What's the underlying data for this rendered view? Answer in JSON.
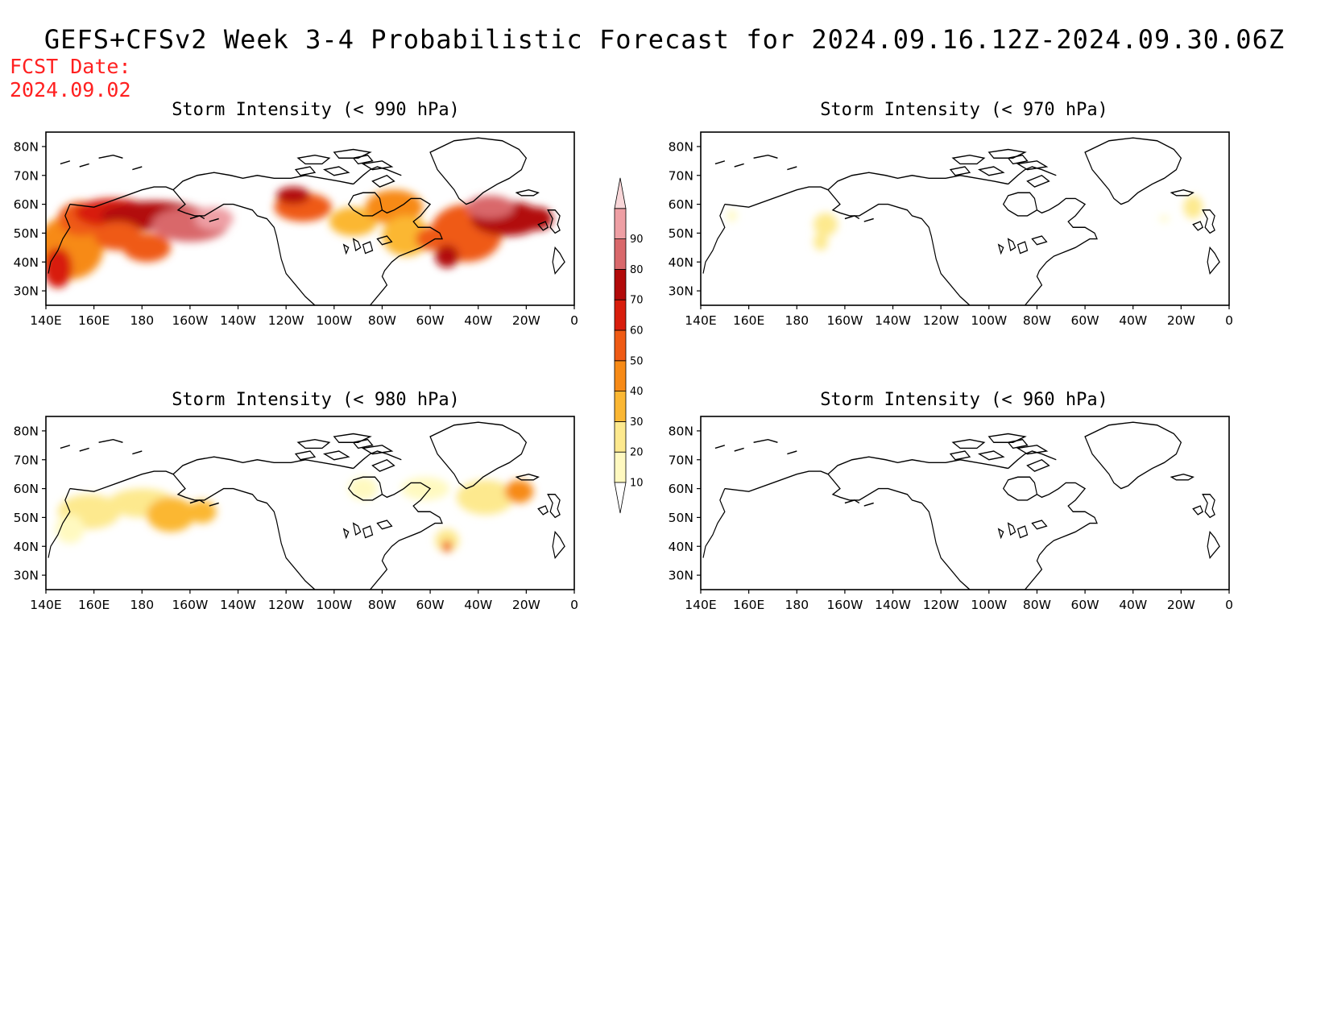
{
  "title": "GEFS+CFSv2 Week 3-4 Probabilistic Forecast for 2024.09.16.12Z-2024.09.30.06Z",
  "fcst_label": "FCST Date:",
  "fcst_date": "2024.09.02",
  "colors": [
    "#fff9c0",
    "#fde98e",
    "#fbb733",
    "#f78a16",
    "#ef5a14",
    "#d81d0c",
    "#b20a0a",
    "#d9686b",
    "#ee9fa4",
    "#f8d6d8"
  ],
  "colorbar": {
    "levels": [
      "10",
      "20",
      "30",
      "40",
      "50",
      "60",
      "70",
      "80",
      "90"
    ]
  },
  "lat_labels": [
    "80N",
    "70N",
    "60N",
    "50N",
    "40N",
    "30N"
  ],
  "lon_labels": [
    "140E",
    "160E",
    "180",
    "160W",
    "140W",
    "120W",
    "100W",
    "80W",
    "60W",
    "40W",
    "20W",
    "0"
  ],
  "panels": [
    {
      "title": "Storm Intensity (< 990 hPa)",
      "threshold_hpa": 990,
      "blobs": [
        {
          "lon": 150,
          "lat": 45,
          "rx": 14,
          "ry": 11,
          "v": 3
        },
        {
          "lon": 155,
          "lat": 55,
          "rx": 10,
          "ry": 6,
          "v": 4
        },
        {
          "lon": 168,
          "lat": 57,
          "rx": 16,
          "ry": 5,
          "v": 5
        },
        {
          "lon": 185,
          "lat": 56,
          "rx": 22,
          "ry": 5,
          "v": 6
        },
        {
          "lon": 170,
          "lat": 49,
          "rx": 10,
          "ry": 5,
          "v": 4
        },
        {
          "lon": 200,
          "lat": 53,
          "rx": 16,
          "ry": 6,
          "v": 7
        },
        {
          "lon": 210,
          "lat": 55,
          "rx": 8,
          "ry": 4,
          "v": 8
        },
        {
          "lon": 182,
          "lat": 45,
          "rx": 10,
          "ry": 5,
          "v": 4
        },
        {
          "lon": 145,
          "lat": 38,
          "rx": 6,
          "ry": 7,
          "v": 5
        },
        {
          "lon": 247,
          "lat": 59,
          "rx": 12,
          "ry": 5,
          "v": 4
        },
        {
          "lon": 243,
          "lat": 63,
          "rx": 7,
          "ry": 3,
          "v": 6
        },
        {
          "lon": 268,
          "lat": 54,
          "rx": 10,
          "ry": 5,
          "v": 2
        },
        {
          "lon": 285,
          "lat": 59,
          "rx": 12,
          "ry": 6,
          "v": 3
        },
        {
          "lon": 290,
          "lat": 49,
          "rx": 10,
          "ry": 7,
          "v": 2
        },
        {
          "lon": 315,
          "lat": 50,
          "rx": 15,
          "ry": 10,
          "v": 4
        },
        {
          "lon": 332,
          "lat": 55,
          "rx": 15,
          "ry": 6,
          "v": 6
        },
        {
          "lon": 325,
          "lat": 59,
          "rx": 10,
          "ry": 4,
          "v": 7
        },
        {
          "lon": 345,
          "lat": 55,
          "rx": 6,
          "ry": 4,
          "v": 6
        },
        {
          "lon": 307,
          "lat": 42,
          "rx": 5,
          "ry": 4,
          "v": 6
        },
        {
          "lon": 300,
          "lat": 48,
          "rx": 6,
          "ry": 4,
          "v": 4
        }
      ]
    },
    {
      "title": "Storm Intensity (< 970 hPa)",
      "threshold_hpa": 970,
      "blobs": [
        {
          "lon": 192,
          "lat": 53,
          "rx": 5,
          "ry": 4,
          "v": 1
        },
        {
          "lon": 190,
          "lat": 47,
          "rx": 3,
          "ry": 3,
          "v": 1
        },
        {
          "lon": 153,
          "lat": 56,
          "rx": 2,
          "ry": 2,
          "v": 0
        },
        {
          "lon": 345,
          "lat": 59,
          "rx": 4,
          "ry": 4,
          "v": 1
        },
        {
          "lon": 333,
          "lat": 55,
          "rx": 2,
          "ry": 1,
          "v": 0
        }
      ]
    },
    {
      "title": "Storm Intensity (< 980 hPa)",
      "threshold_hpa": 980,
      "blobs": [
        {
          "lon": 158,
          "lat": 52,
          "rx": 13,
          "ry": 6,
          "v": 1
        },
        {
          "lon": 180,
          "lat": 55,
          "rx": 14,
          "ry": 5,
          "v": 1
        },
        {
          "lon": 192,
          "lat": 51,
          "rx": 10,
          "ry": 6,
          "v": 2
        },
        {
          "lon": 205,
          "lat": 52,
          "rx": 6,
          "ry": 4,
          "v": 2
        },
        {
          "lon": 150,
          "lat": 46,
          "rx": 6,
          "ry": 5,
          "v": 0
        },
        {
          "lon": 307,
          "lat": 42,
          "rx": 5,
          "ry": 4,
          "v": 1
        },
        {
          "lon": 307,
          "lat": 40,
          "rx": 2,
          "ry": 2,
          "v": 4
        },
        {
          "lon": 323,
          "lat": 57,
          "rx": 12,
          "ry": 6,
          "v": 1
        },
        {
          "lon": 337,
          "lat": 59,
          "rx": 6,
          "ry": 4,
          "v": 3
        },
        {
          "lon": 298,
          "lat": 60,
          "rx": 10,
          "ry": 4,
          "v": 0
        },
        {
          "lon": 272,
          "lat": 60,
          "rx": 6,
          "ry": 4,
          "v": 0
        }
      ]
    },
    {
      "title": "Storm Intensity (< 960 hPa)",
      "threshold_hpa": 960,
      "blobs": []
    }
  ]
}
